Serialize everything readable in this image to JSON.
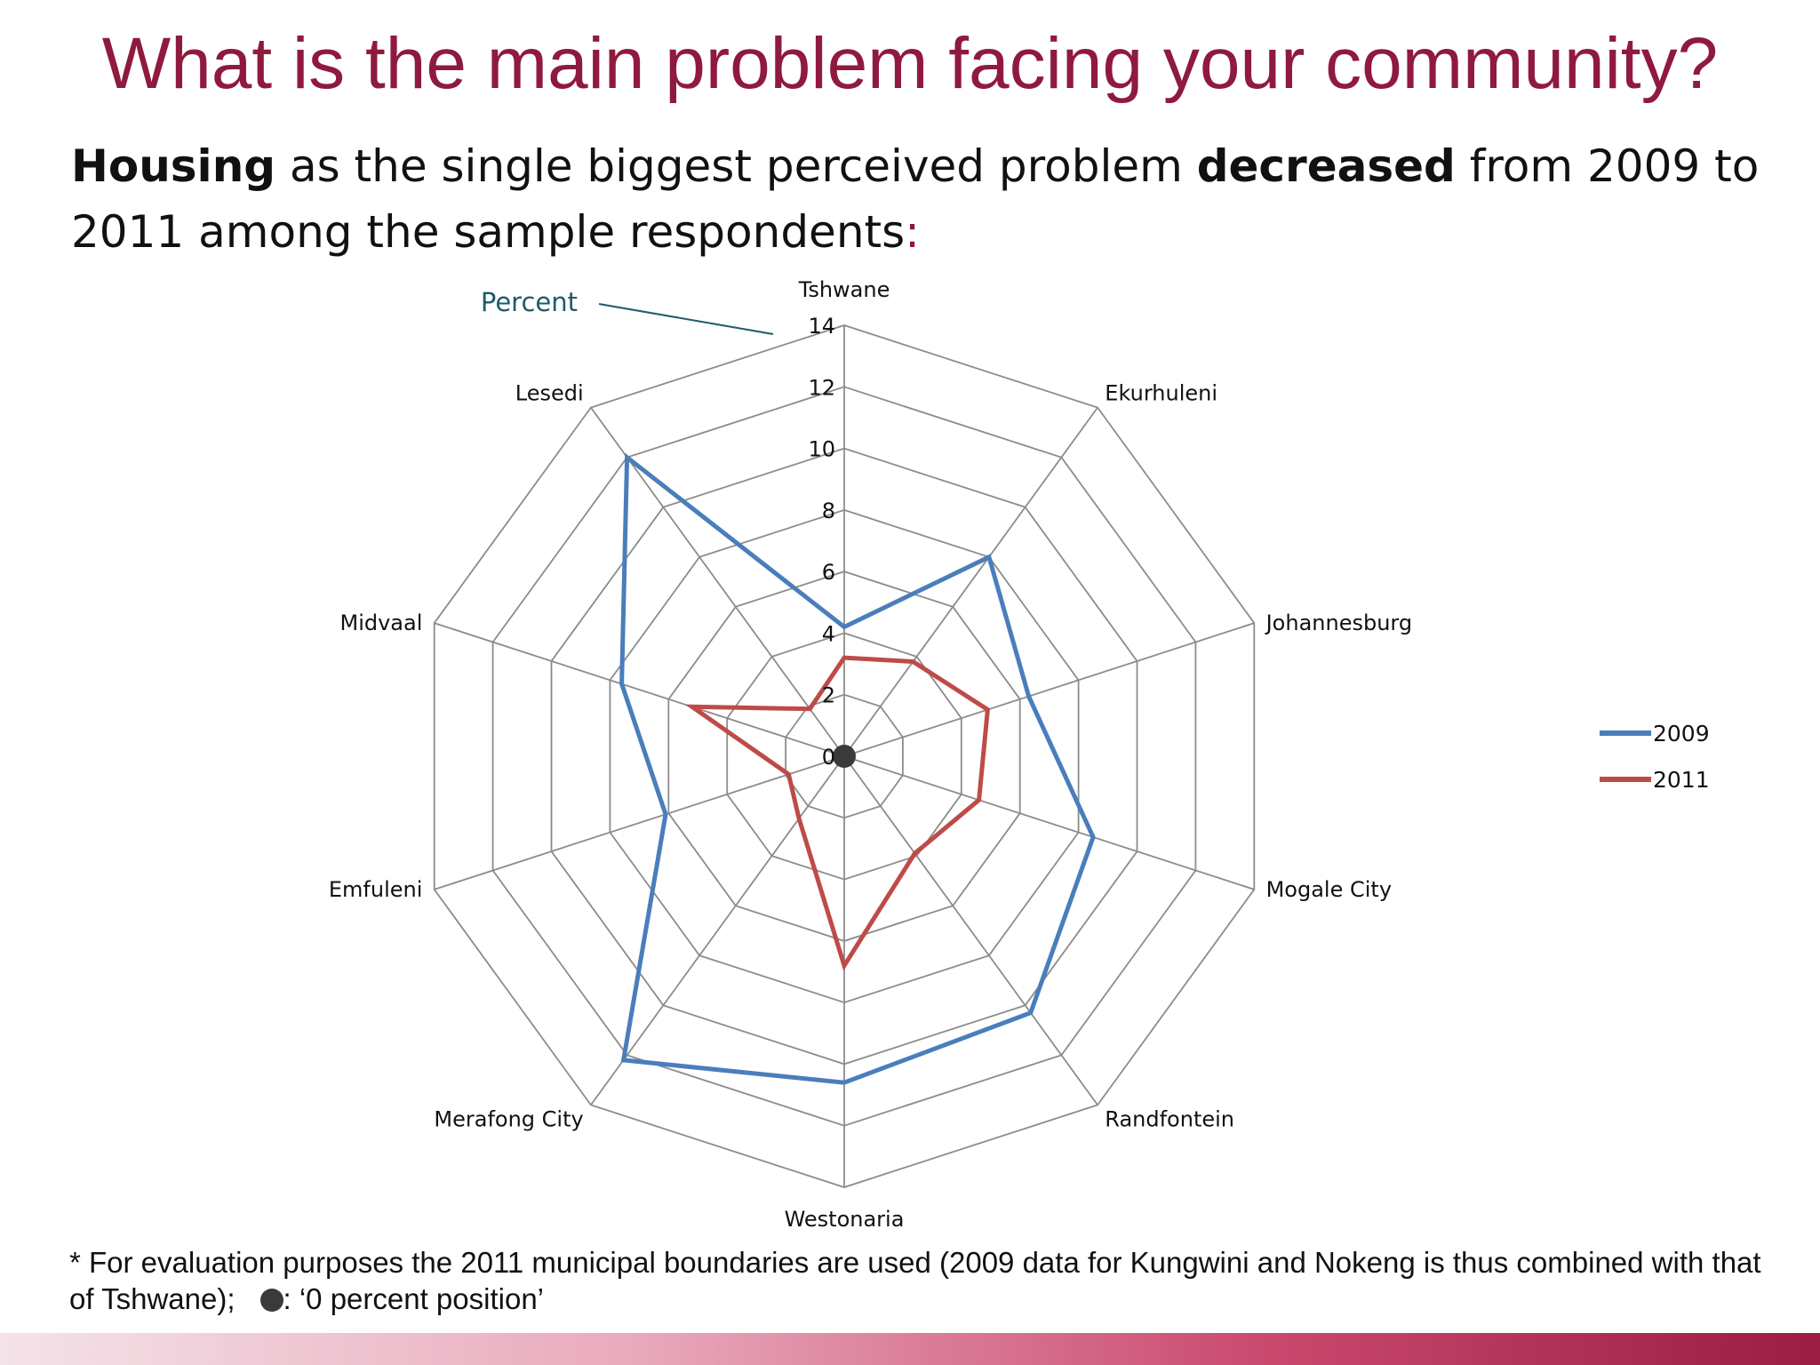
{
  "slide": {
    "title": "What is the main problem facing your community?",
    "subtitle_bold1": "Housing",
    "subtitle_text1": " as the single biggest perceived problem ",
    "subtitle_bold2": "decreased",
    "subtitle_text2": " from 2009 to 2011 among the sample respondents",
    "subtitle_colon": ":",
    "footnote_text": "* For evaluation purposes the 2011 municipal boundaries are used (2009 data for Kungwini and Nokeng is thus combined with that of Tshwane);",
    "footnote_marker": ": ‘0 percent position’"
  },
  "colors": {
    "title": "#8f1a3e",
    "series_2009": "#4a7ebb",
    "series_2011": "#be4b48",
    "grid": "#8c8c8c",
    "percent_label": "#1f5a6b"
  },
  "chart_data": {
    "type": "radar",
    "axis_label": "Percent",
    "categories": [
      "Tshwane",
      "Ekurhuleni",
      "Johannesburg",
      "Mogale City",
      "Randfontein",
      "Westonaria",
      "Merafong City",
      "Emfuleni",
      "Midvaal",
      "Lesedi"
    ],
    "rmin": 0,
    "rmax": 14,
    "ticks": [
      0,
      2,
      4,
      6,
      8,
      10,
      12,
      14
    ],
    "tick_labels": [
      "0",
      "2",
      "4",
      "6",
      "8",
      "10",
      "12",
      "14"
    ],
    "series": [
      {
        "name": "2009",
        "values": [
          4.2,
          8.0,
          6.3,
          8.5,
          10.3,
          10.6,
          12.2,
          6.1,
          7.6,
          12.0
        ]
      },
      {
        "name": "2011",
        "values": [
          3.2,
          3.8,
          4.9,
          4.6,
          3.9,
          6.8,
          2.5,
          1.9,
          5.2,
          1.9
        ]
      }
    ],
    "legend_position": "right"
  }
}
